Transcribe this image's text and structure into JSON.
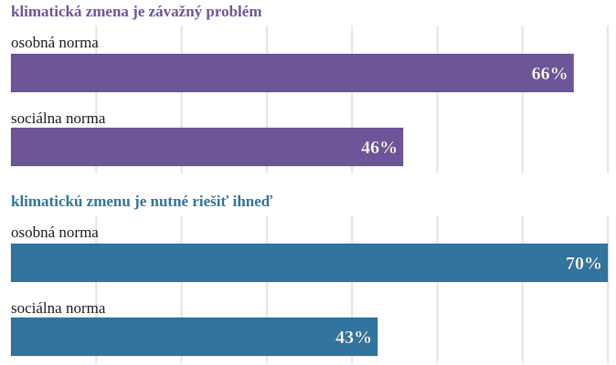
{
  "chart_data": [
    {
      "type": "bar",
      "orientation": "horizontal",
      "title": "klimatická zmena je závažný problém",
      "color": "#6e5499",
      "categories": [
        "osobná norma",
        "sociálna norma"
      ],
      "values": [
        66,
        46
      ],
      "value_labels": [
        "66%",
        "46%"
      ],
      "xlim": [
        0,
        70
      ],
      "grid": true
    },
    {
      "type": "bar",
      "orientation": "horizontal",
      "title": "klimatickú zmenu je nutné riešiť ihneď",
      "color": "#31759e",
      "categories": [
        "osobná norma",
        "sociálna norma"
      ],
      "values": [
        70,
        43
      ],
      "value_labels": [
        "70%",
        "43%"
      ],
      "xlim": [
        0,
        70
      ],
      "grid": true
    }
  ]
}
